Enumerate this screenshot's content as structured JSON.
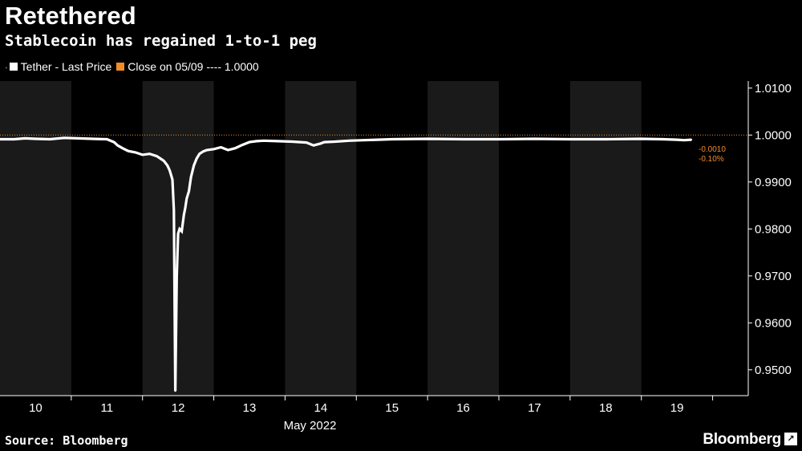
{
  "header": {
    "title": "Retethered",
    "subtitle": "Stablecoin has regained 1-to-1 peg"
  },
  "legend": {
    "series_label": "Tether - Last Price",
    "close_label": "Close on 05/09 ---- 1.0000"
  },
  "footer": {
    "source": "Source: Bloomberg",
    "brand": "Bloomberg"
  },
  "colors": {
    "background": "#000000",
    "band": "#1a1a1a",
    "series": "#ffffff",
    "close_line": "#f28c28",
    "annotation": "#f28c28",
    "axis": "#ffffff"
  },
  "chart_data": {
    "type": "line",
    "xlabel": "May 2022",
    "ylabel": "",
    "x_ticks": [
      "10",
      "11",
      "12",
      "13",
      "14",
      "15",
      "16",
      "17",
      "18",
      "19"
    ],
    "x_range": [
      9.5,
      20.0
    ],
    "ylim": [
      0.9445,
      1.0115
    ],
    "y_ticks": [
      0.95,
      0.96,
      0.97,
      0.98,
      0.99,
      1.0,
      1.01
    ],
    "y_tick_labels": [
      "0.9500",
      "0.9600",
      "0.9700",
      "0.9800",
      "0.9900",
      "1.0000",
      "1.0100"
    ],
    "y_axis_side": "right",
    "shaded_days": [
      10,
      12,
      14,
      16,
      18
    ],
    "reference_line": {
      "value": 1.0,
      "label": "Close on 05/09",
      "style": "dotted"
    },
    "annotations": [
      "-0.0010",
      "-0.10%"
    ],
    "series": [
      {
        "name": "Tether - Last Price",
        "x": [
          9.5,
          9.7,
          9.85,
          10.0,
          10.2,
          10.4,
          10.6,
          10.8,
          11.0,
          11.1,
          11.15,
          11.22,
          11.3,
          11.4,
          11.5,
          11.6,
          11.7,
          11.75,
          11.8,
          11.85,
          11.88,
          11.9,
          11.92,
          11.94,
          11.96,
          11.98,
          12.0,
          12.02,
          12.05,
          12.08,
          12.1,
          12.12,
          12.15,
          12.18,
          12.22,
          12.26,
          12.3,
          12.35,
          12.4,
          12.5,
          12.6,
          12.7,
          12.8,
          12.9,
          13.0,
          13.1,
          13.2,
          13.4,
          13.6,
          13.8,
          13.9,
          14.0,
          14.05,
          14.2,
          14.4,
          14.6,
          14.8,
          15.0,
          15.5,
          16.0,
          16.5,
          17.0,
          17.5,
          18.0,
          18.5,
          18.8,
          19.0,
          19.1,
          19.2
        ],
        "y": [
          0.9991,
          0.9991,
          0.9993,
          0.9992,
          0.9991,
          0.9994,
          0.9993,
          0.9992,
          0.9991,
          0.9985,
          0.9978,
          0.9972,
          0.9966,
          0.9963,
          0.9958,
          0.996,
          0.9955,
          0.995,
          0.9945,
          0.9935,
          0.9925,
          0.9915,
          0.9905,
          0.984,
          0.9455,
          0.97,
          0.979,
          0.98,
          0.9795,
          0.983,
          0.9845,
          0.9865,
          0.988,
          0.991,
          0.9935,
          0.995,
          0.996,
          0.9965,
          0.9968,
          0.997,
          0.9974,
          0.9968,
          0.9972,
          0.9979,
          0.9985,
          0.9987,
          0.9988,
          0.9987,
          0.9986,
          0.9984,
          0.9978,
          0.9982,
          0.9985,
          0.9986,
          0.9988,
          0.9989,
          0.999,
          0.9991,
          0.9992,
          0.9991,
          0.9991,
          0.9992,
          0.9991,
          0.9991,
          0.9992,
          0.9991,
          0.999,
          0.9989,
          0.999
        ]
      }
    ]
  }
}
